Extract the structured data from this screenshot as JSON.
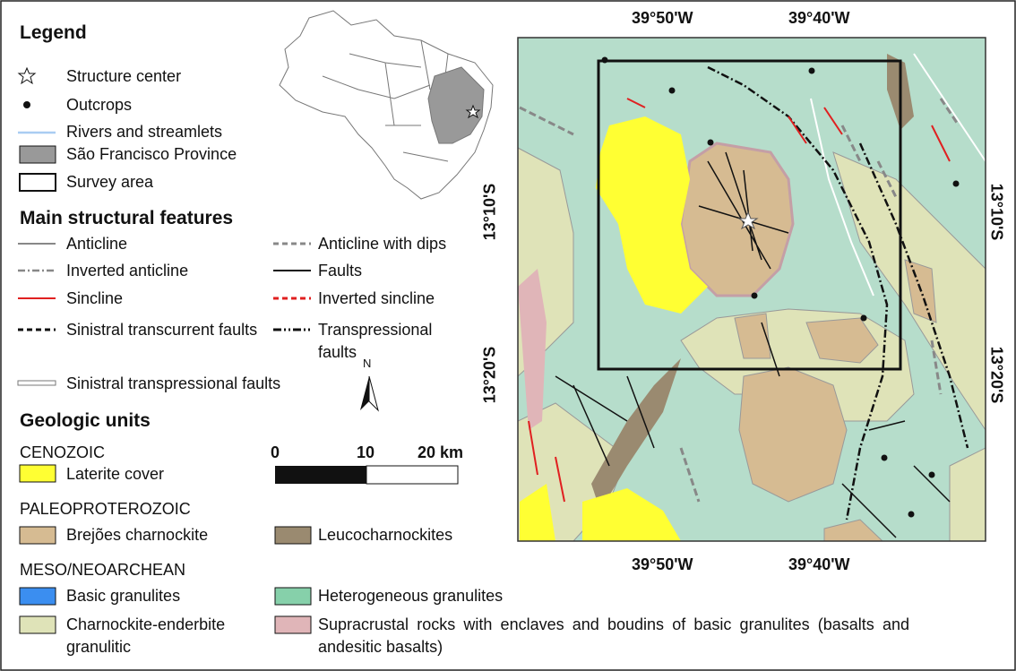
{
  "legend": {
    "title": "Legend",
    "symbols": [
      "Structure center",
      "Outcrops",
      "Rivers and streamlets",
      "São Francisco Province",
      "Survey area"
    ]
  },
  "structural_features": {
    "title": "Main structural features",
    "items": [
      "Anticline",
      "Anticline with dips",
      "Inverted anticline",
      "Faults",
      "Sincline",
      "Inverted sincline",
      "Sinistral transcurrent faults",
      "Transpressional faults",
      "Sinistral transpressional faults"
    ]
  },
  "geologic_units": {
    "title": "Geologic units",
    "groups": [
      {
        "era": "CENOZOIC",
        "units": [
          "Laterite cover"
        ]
      },
      {
        "era": "PALEOPROTEROZOIC",
        "units": [
          "Brejões charnockite",
          "Leucocharnockites"
        ]
      },
      {
        "era": "MESO/NEOARCHEAN",
        "units": [
          "Basic granulites",
          "Heterogeneous granulites",
          "Charnockite-enderbite granulitic",
          "Supracrustal rocks with enclaves and boudins of basic granulites (basalts and andesitic basalts)"
        ]
      }
    ]
  },
  "scale_bar": {
    "north": "N",
    "labels": [
      "0",
      "10",
      "20 km"
    ]
  },
  "map": {
    "top_labels": [
      "39°50'W",
      "39°40'W"
    ],
    "bottom_labels": [
      "39°50'W",
      "39°40'W"
    ],
    "left_labels": [
      "13°10'S",
      "13°20'S"
    ],
    "right_labels": [
      "13°10'S",
      "13°20'S"
    ]
  }
}
